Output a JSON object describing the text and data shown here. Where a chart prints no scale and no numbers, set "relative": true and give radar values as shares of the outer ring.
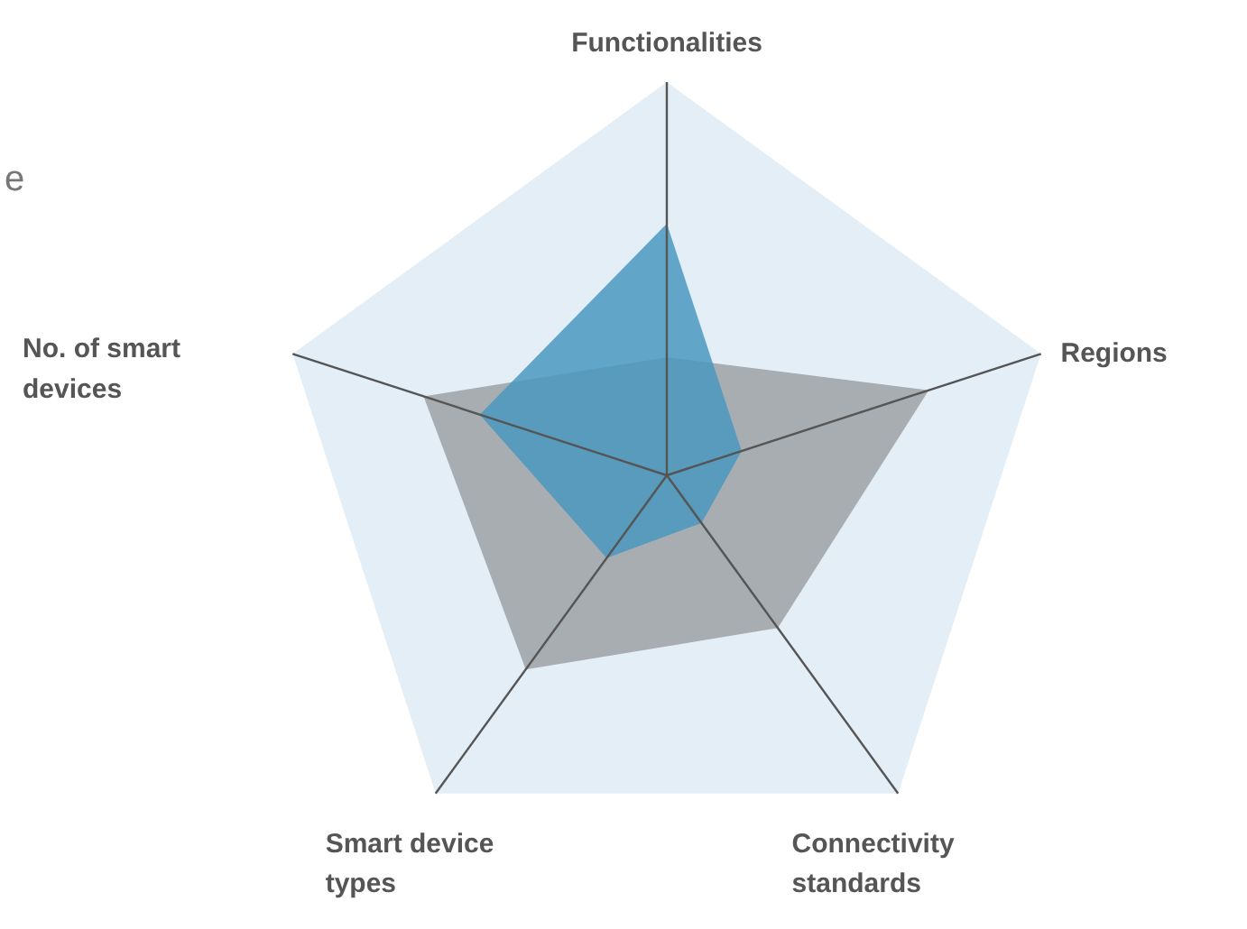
{
  "chart_data": {
    "type": "radar",
    "relative": true,
    "categories": [
      "Functionalities",
      "Regions",
      "Connectivity standards",
      "Smart device types",
      "No. of smart devices"
    ],
    "series": [
      {
        "color": "#9da1a5",
        "values": [
          0.3,
          0.7,
          0.48,
          0.61,
          0.65
        ]
      },
      {
        "color": "#4a98c0",
        "values": [
          0.64,
          0.2,
          0.15,
          0.26,
          0.5
        ]
      }
    ],
    "annotations": [
      "e"
    ]
  }
}
